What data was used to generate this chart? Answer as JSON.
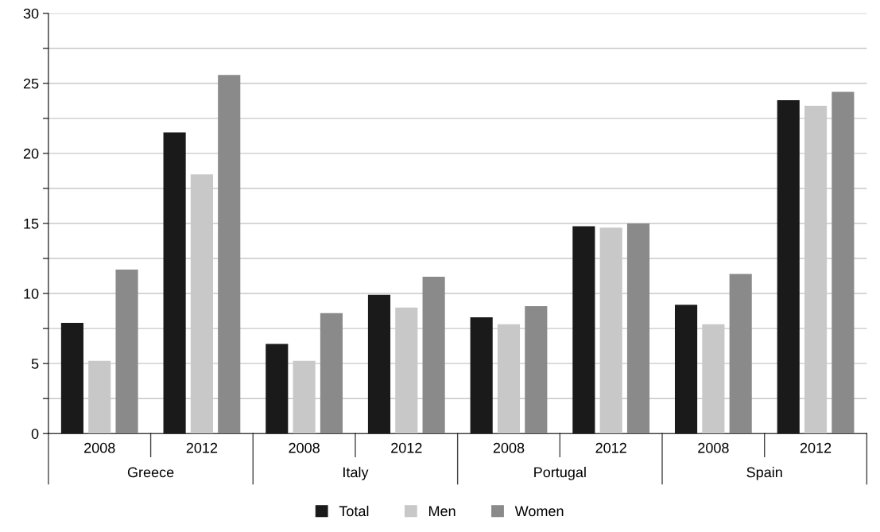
{
  "chart_data": {
    "type": "bar",
    "categories": [
      "2008",
      "2012",
      "2008",
      "2012",
      "2008",
      "2012",
      "2008",
      "2012"
    ],
    "series": [
      {
        "name": "Total",
        "color": "#1a1a1a",
        "values": [
          7.9,
          21.5,
          6.4,
          9.9,
          8.3,
          14.8,
          9.2,
          23.8
        ]
      },
      {
        "name": "Men",
        "color": "#c8c8c8",
        "values": [
          5.2,
          18.5,
          5.2,
          9.0,
          7.8,
          14.7,
          7.8,
          23.4
        ]
      },
      {
        "name": "Women",
        "color": "#8a8a8a",
        "values": [
          11.7,
          25.6,
          8.6,
          11.2,
          9.1,
          15.0,
          11.4,
          24.4
        ]
      }
    ],
    "annotations": [
      "Greece",
      "Italy",
      "Portugal",
      "Spain"
    ],
    "ylim": [
      0,
      30
    ],
    "yticks": [
      0,
      {
        "value": 2.5,
        "label": null
      },
      5,
      {
        "value": 7.5,
        "label": null
      },
      10,
      {
        "value": 12.5,
        "label": null
      },
      15,
      {
        "value": 17.5,
        "label": null
      },
      20,
      {
        "value": 22.5,
        "label": null
      },
      25,
      {
        "value": 27.5,
        "label": null
      },
      30
    ],
    "grid": "y",
    "legend": "bottom"
  }
}
